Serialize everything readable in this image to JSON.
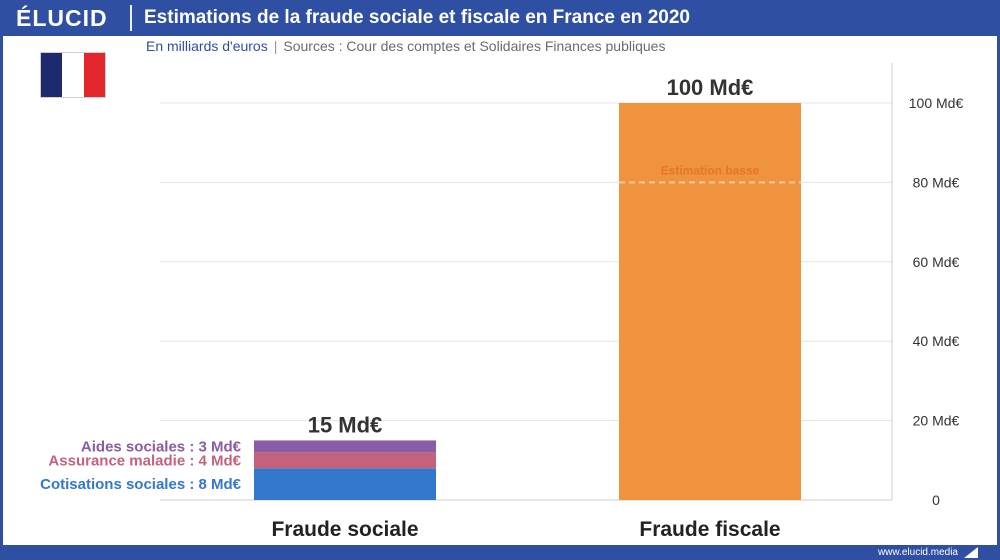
{
  "brand": {
    "logo": "ÉLUCID",
    "url": "www.elucid.media",
    "color": "#2f4fa2"
  },
  "header": {
    "title": "Estimations de la fraude sociale et fiscale en France en 2020"
  },
  "subtitle": {
    "unit": "En milliards d'euros",
    "separator": "|",
    "sources": "Sources : Cour des comptes et Solidaires Finances publiques"
  },
  "flag": {
    "icon": "france-flag-icon",
    "colors": [
      "#1e2a6e",
      "#ffffff",
      "#e3262b"
    ]
  },
  "chart_data": {
    "type": "bar",
    "stacked": true,
    "categories": [
      "Fraude sociale",
      "Fraude fiscale"
    ],
    "ylim": [
      0,
      110
    ],
    "yticks": [
      0,
      20,
      40,
      60,
      80,
      100
    ],
    "ytick_labels": [
      "0",
      "20 Md€",
      "40 Md€",
      "60 Md€",
      "80 Md€",
      "100 Md€"
    ],
    "y_axis_position": "right",
    "grid": true,
    "series": [
      {
        "name": "Cotisations sociales : 8 Md€",
        "values": [
          8,
          0
        ],
        "color": "#3478cc"
      },
      {
        "name": "Assurance maladie : 4 Md€",
        "values": [
          4,
          0
        ],
        "color": "#c4627e"
      },
      {
        "name": "Aides sociales : 3 Md€",
        "values": [
          3,
          0
        ],
        "color": "#8a5ba6"
      },
      {
        "name": "",
        "values": [
          0,
          100
        ],
        "color": "#ef933e"
      }
    ],
    "totals": [
      15,
      100
    ],
    "total_labels": [
      "15 Md€",
      "100 Md€"
    ],
    "annotation": {
      "text": "Estimation basse",
      "value": 80,
      "category": "Fraude fiscale",
      "color": "#e8732a"
    }
  }
}
